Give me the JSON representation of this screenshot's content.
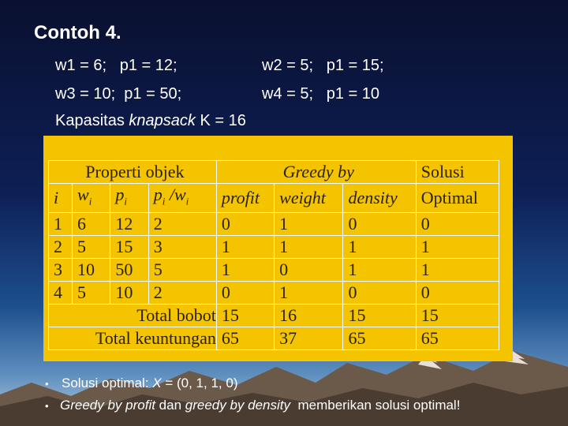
{
  "title": "Contoh 4.",
  "params": {
    "w1": "w1 = 6;",
    "p1a": "p1 = 12;",
    "w2": "w2 = 5;",
    "p1b": "p1 = 15;",
    "w3": "w3 = 10;",
    "p1c": "p1 = 50;",
    "w4": "w4 = 5;",
    "p1d": "p1 = 10",
    "kap_prefix": "Kapasitas ",
    "kap_word": "knapsack",
    "kap_suffix": " K = 16"
  },
  "table": {
    "group_headers": [
      "Properti objek",
      "Greedy by",
      "Solusi"
    ],
    "solusi_second": "Optimal",
    "columns": [
      "i",
      "wi",
      "pi",
      "pi/wi",
      "profit",
      "weight",
      "density"
    ],
    "rows": [
      [
        "1",
        "6",
        "12",
        "2",
        "0",
        "1",
        "0",
        "0"
      ],
      [
        "2",
        "5",
        "15",
        "3",
        "1",
        "1",
        "1",
        "1"
      ],
      [
        "3",
        "10",
        "50",
        "5",
        "1",
        "0",
        "1",
        "1"
      ],
      [
        "4",
        "5",
        "10",
        "2",
        "0",
        "1",
        "0",
        "0"
      ]
    ],
    "total_bobot": {
      "label": "Total bobot",
      "values": [
        "15",
        "16",
        "15",
        "15"
      ]
    },
    "total_keuntungan": {
      "label": "Total keuntungan",
      "values": [
        "65",
        "37",
        "65",
        "65"
      ]
    }
  },
  "bullets": {
    "b1_prefix": "Solusi optimal: ",
    "b1_x": "X",
    "b1_suffix": " = (0, 1, 1, 0)",
    "b2_a": "Greedy by profit",
    "b2_b": " dan ",
    "b2_c": "greedy by density",
    "b2_d": "  memberikan solusi optimal!"
  }
}
